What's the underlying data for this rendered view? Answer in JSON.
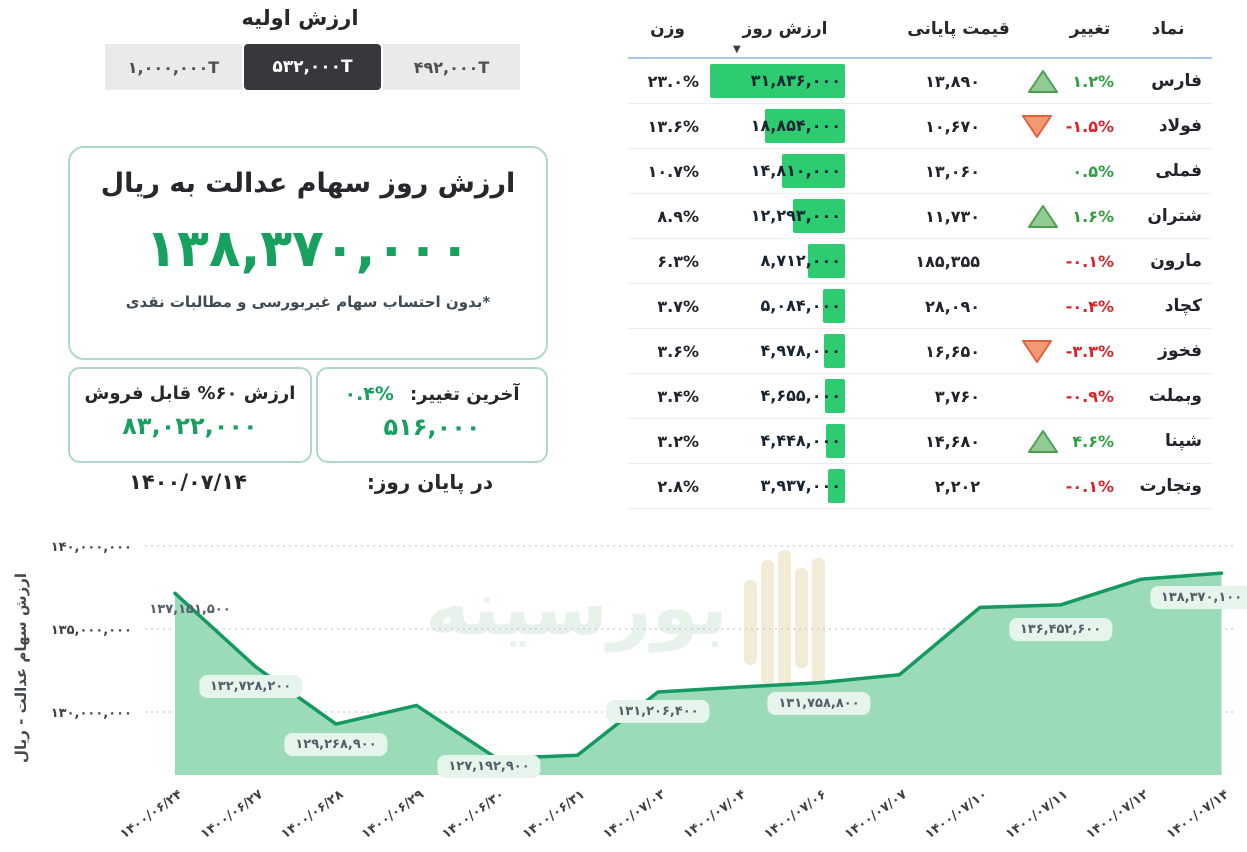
{
  "colors": {
    "accent_green": "#17a05e",
    "bar_green": "#2ecc71",
    "chart_line": "#149a60",
    "chart_fill": "#9cdbb8",
    "up_green": "#2e9e3f",
    "down_red": "#d8232a",
    "up_triangle_fill": "#92cb93",
    "up_triangle_stroke": "#4da04f",
    "down_triangle_fill": "#f09a73",
    "down_triangle_stroke": "#e2603c",
    "selected_button_bg": "#37383b",
    "header_underline": "#a9c7e8",
    "grid_line": "#c9c9c9",
    "tick_text": "#3f4245"
  },
  "initial_value": {
    "title": "ارزش اولیه",
    "options": [
      {
        "label": "۴۹۲,۰۰۰T",
        "selected": false
      },
      {
        "label": "۵۳۲,۰۰۰T",
        "selected": true
      },
      {
        "label": "۱,۰۰۰,۰۰۰T",
        "selected": false
      }
    ]
  },
  "main_card": {
    "title": "ارزش روز سهام عدالت به ریال",
    "value": "۱۳۸,۳۷۰,۰۰۰",
    "footnote": "*بدون احتساب سهام غیربورسی و مطالبات نقدی"
  },
  "sellable_box": {
    "label": "ارزش ۶۰% قابل فروش",
    "value": "۸۳,۰۲۲,۰۰۰"
  },
  "change_box": {
    "label": "آخرین تغییر:",
    "percent": "۰.۴%",
    "value": "۵۱۶,۰۰۰"
  },
  "footer": {
    "end_of_day_label": "در پایان روز:",
    "date": "۱۴۰۰/۰۷/۱۴"
  },
  "table": {
    "headers": {
      "symbol": "نماد",
      "change": "تغییر",
      "close_price": "قیمت پایانی",
      "day_value": "ارزش روز",
      "weight": "وزن"
    },
    "sort_icon": "▼",
    "sort": {
      "column": "ارزش روز",
      "direction": "desc"
    },
    "rows": [
      {
        "symbol": "فارس",
        "change": "۱.۲%",
        "dir": "up",
        "arrow": true,
        "close": "۱۳,۸۹۰",
        "value": "۳۱,۸۳۶,۰۰۰",
        "value_num": 31836000,
        "weight": "۲۳.۰%"
      },
      {
        "symbol": "فولاد",
        "change": "-۱.۵%",
        "dir": "down",
        "arrow": true,
        "close": "۱۰,۶۷۰",
        "value": "۱۸,۸۵۴,۰۰۰",
        "value_num": 18854000,
        "weight": "۱۳.۶%"
      },
      {
        "symbol": "فملی",
        "change": "۰.۵%",
        "dir": "up",
        "arrow": false,
        "close": "۱۳,۰۶۰",
        "value": "۱۴,۸۱۰,۰۰۰",
        "value_num": 14810000,
        "weight": "۱۰.۷%"
      },
      {
        "symbol": "شتران",
        "change": "۱.۶%",
        "dir": "up",
        "arrow": true,
        "close": "۱۱,۷۳۰",
        "value": "۱۲,۲۹۳,۰۰۰",
        "value_num": 12293000,
        "weight": "۸.۹%"
      },
      {
        "symbol": "مارون",
        "change": "-۰.۱%",
        "dir": "down",
        "arrow": false,
        "close": "۱۸۵,۳۵۵",
        "value": "۸,۷۱۲,۰۰۰",
        "value_num": 8712000,
        "weight": "۶.۳%"
      },
      {
        "symbol": "کچاد",
        "change": "-۰.۴%",
        "dir": "down",
        "arrow": false,
        "close": "۲۸,۰۹۰",
        "value": "۵,۰۸۴,۰۰۰",
        "value_num": 5084000,
        "weight": "۳.۷%"
      },
      {
        "symbol": "فخوز",
        "change": "-۳.۳%",
        "dir": "down",
        "arrow": true,
        "close": "۱۶,۶۵۰",
        "value": "۴,۹۷۸,۰۰۰",
        "value_num": 4978000,
        "weight": "۳.۶%"
      },
      {
        "symbol": "وبملت",
        "change": "-۰.۹%",
        "dir": "down",
        "arrow": false,
        "close": "۳,۷۶۰",
        "value": "۴,۶۵۵,۰۰۰",
        "value_num": 4655000,
        "weight": "۳.۴%"
      },
      {
        "symbol": "شپنا",
        "change": "۴.۶%",
        "dir": "up",
        "arrow": true,
        "close": "۱۴,۶۸۰",
        "value": "۴,۴۴۸,۰۰۰",
        "value_num": 4448000,
        "weight": "۳.۲%"
      },
      {
        "symbol": "وتجارت",
        "change": "-۰.۱%",
        "dir": "down",
        "arrow": false,
        "close": "۲,۲۰۲",
        "value": "۳,۹۳۷,۰۰۰",
        "value_num": 3937000,
        "weight": "۲.۸%"
      }
    ]
  },
  "chart_data": {
    "type": "area",
    "title": "",
    "ylabel": "ارزش سهام عدالت - ریال",
    "ylim": [
      126200000,
      141500000
    ],
    "grid": true,
    "watermark": "بورسینه",
    "y_ticks": [
      {
        "label": "۱۴۰,۰۰۰,۰۰۰",
        "value": 140000000
      },
      {
        "label": "۱۳۵,۰۰۰,۰۰۰",
        "value": 135000000
      },
      {
        "label": "۱۳۰,۰۰۰,۰۰۰",
        "value": 130000000
      }
    ],
    "x": [
      "۱۴۰۰/۰۶/۲۴",
      "۱۴۰۰/۰۶/۲۷",
      "۱۴۰۰/۰۶/۲۸",
      "۱۴۰۰/۰۶/۲۹",
      "۱۴۰۰/۰۶/۳۰",
      "۱۴۰۰/۰۶/۳۱",
      "۱۴۰۰/۰۷/۰۳",
      "۱۴۰۰/۰۷/۰۴",
      "۱۴۰۰/۰۷/۰۶",
      "۱۴۰۰/۰۷/۰۷",
      "۱۴۰۰/۰۷/۱۰",
      "۱۴۰۰/۰۷/۱۱",
      "۱۴۰۰/۰۷/۱۲",
      "۱۴۰۰/۰۷/۱۴"
    ],
    "values": [
      137151500,
      132728200,
      129268900,
      130400000,
      127192900,
      127400000,
      131206400,
      131500000,
      131758800,
      132250000,
      136300000,
      136452600,
      138000000,
      138370100
    ],
    "point_labels": [
      {
        "index": 0,
        "text": "۱۳۷,۱۵۱,۵۰۰"
      },
      {
        "index": 1,
        "text": "۱۳۲,۷۲۸,۲۰۰"
      },
      {
        "index": 2,
        "text": "۱۲۹,۲۶۸,۹۰۰"
      },
      {
        "index": 4,
        "text": "۱۲۷,۱۹۲,۹۰۰"
      },
      {
        "index": 6,
        "text": "۱۳۱,۲۰۶,۴۰۰"
      },
      {
        "index": 8,
        "text": "۱۳۱,۷۵۸,۸۰۰"
      },
      {
        "index": 11,
        "text": "۱۳۶,۴۵۲,۶۰۰"
      },
      {
        "index": 13,
        "text": "۱۳۸,۳۷۰,۱۰۰"
      }
    ]
  }
}
